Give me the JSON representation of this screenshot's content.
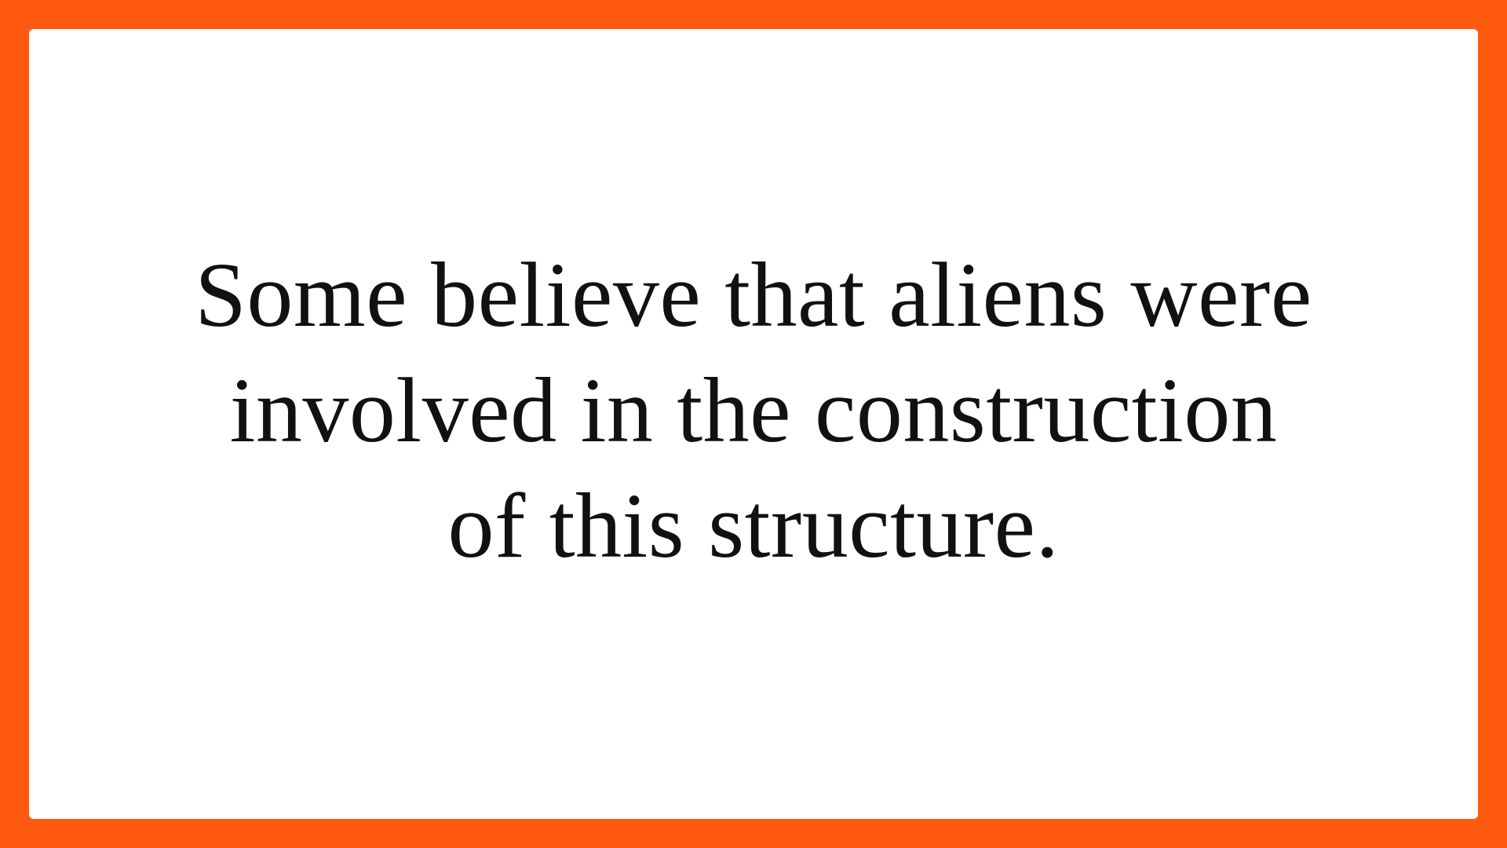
{
  "colors": {
    "border": "#ff5a0f",
    "card_background": "#ffffff",
    "text": "#111111"
  },
  "slide": {
    "quote_lines": [
      "Some believe that aliens were",
      "involved in the construction",
      "of this structure."
    ]
  }
}
